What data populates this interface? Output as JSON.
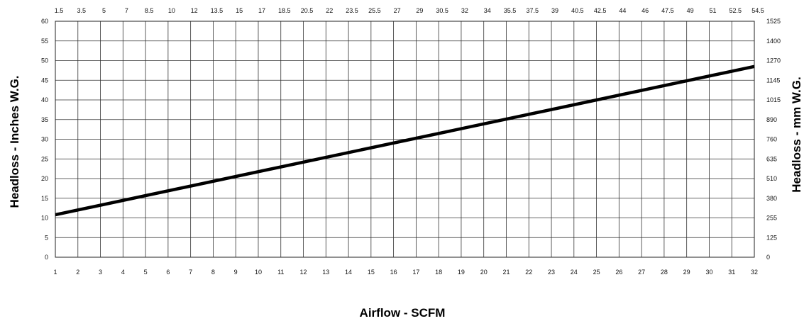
{
  "chart_data": {
    "type": "line",
    "xlabel": "Airflow - SCFM",
    "ylabel": "Headloss - Inches W.G.",
    "ylabel_right": "Headloss - mm W.G.",
    "x_ticks": [
      "1",
      "2",
      "3",
      "4",
      "5",
      "6",
      "7",
      "8",
      "9",
      "10",
      "11",
      "12",
      "13",
      "14",
      "15",
      "16",
      "17",
      "18",
      "19",
      "20",
      "21",
      "22",
      "23",
      "24",
      "25",
      "26",
      "27",
      "28",
      "29",
      "30",
      "31",
      "32"
    ],
    "x_top_ticks": [
      "1.5",
      "3.5",
      "5",
      "7",
      "8.5",
      "10",
      "12",
      "13.5",
      "15",
      "17",
      "18.5",
      "20.5",
      "22",
      "23.5",
      "25.5",
      "27",
      "29",
      "30.5",
      "32",
      "34",
      "35.5",
      "37.5",
      "39",
      "40.5",
      "42.5",
      "44",
      "46",
      "47.5",
      "49",
      "51",
      "52.5",
      "54.5"
    ],
    "y_ticks": [
      "0",
      "5",
      "10",
      "15",
      "20",
      "25",
      "30",
      "35",
      "40",
      "45",
      "50",
      "55",
      "60"
    ],
    "y_right_ticks": [
      "0",
      "125",
      "255",
      "380",
      "510",
      "635",
      "760",
      "890",
      "1015",
      "1145",
      "1270",
      "1400",
      "1525"
    ],
    "xlim": [
      1,
      32
    ],
    "ylim": [
      0,
      60
    ],
    "grid": true,
    "line_color": "#000000",
    "series": [
      {
        "x": [
          1,
          32
        ],
        "y": [
          10.8,
          48.5
        ]
      }
    ]
  }
}
